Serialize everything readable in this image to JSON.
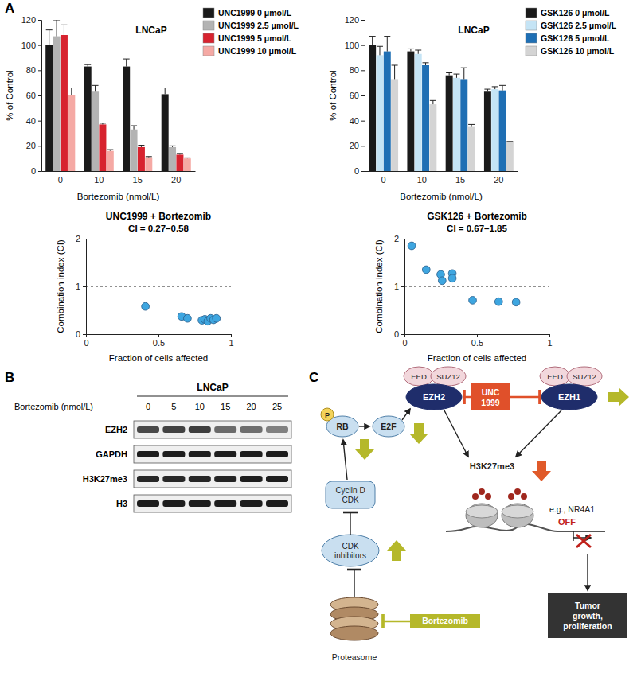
{
  "panel_labels": [
    "A",
    "B",
    "C"
  ],
  "chart_data": [
    {
      "type": "bar",
      "title": "LNCaP",
      "x_label": "Bortezomib (nmol/L)",
      "y_label": "% of Control",
      "categories": [
        "0",
        "10",
        "15",
        "20"
      ],
      "ylim": [
        0,
        120
      ],
      "yticks": [
        0,
        20,
        40,
        60,
        80,
        100,
        120
      ],
      "grid": false,
      "legend": "right",
      "series": [
        {
          "name": "UNC1999 0 μmol/L",
          "color": "#1a1a1a",
          "values": [
            100,
            83,
            83,
            61
          ],
          "errors": [
            12,
            1.5,
            6,
            5
          ]
        },
        {
          "name": "UNC1999 2.5 μmol/L",
          "color": "#b3b3b3",
          "values": [
            107,
            63,
            33,
            19
          ],
          "errors": [
            13,
            5,
            3,
            1
          ]
        },
        {
          "name": "UNC1999 5 μmol/L",
          "color": "#d7232f",
          "values": [
            108,
            37,
            19,
            13
          ],
          "errors": [
            8,
            1,
            1.5,
            1
          ]
        },
        {
          "name": "UNC1999 10 μmol/L",
          "color": "#f5a9a4",
          "values": [
            60,
            16,
            11,
            10
          ],
          "errors": [
            6,
            1,
            0.5,
            0.5
          ]
        }
      ]
    },
    {
      "type": "bar",
      "title": "LNCaP",
      "x_label": "Bortezomib (nmol/L)",
      "y_label": "% of Control",
      "categories": [
        "0",
        "10",
        "15",
        "20"
      ],
      "ylim": [
        0,
        120
      ],
      "yticks": [
        0,
        20,
        40,
        60,
        80,
        100,
        120
      ],
      "grid": false,
      "legend": "right",
      "series": [
        {
          "name": "GSK126 0 μmol/L",
          "color": "#1a1a1a",
          "values": [
            100,
            95,
            76,
            63
          ],
          "errors": [
            7,
            2,
            2,
            2
          ]
        },
        {
          "name": "GSK126 2.5 μmol/L",
          "color": "#c5e4f5",
          "values": [
            92,
            93,
            74,
            65
          ],
          "errors": [
            7,
            3,
            3,
            2
          ]
        },
        {
          "name": "GSK126 5 μmol/L",
          "color": "#1f6fb4",
          "values": [
            95,
            84,
            73,
            64
          ],
          "errors": [
            12,
            2,
            9,
            4
          ]
        },
        {
          "name": "GSK126 10 μmol/L",
          "color": "#d4d4d4",
          "values": [
            73,
            53,
            35,
            23
          ],
          "errors": [
            11,
            3,
            2,
            0.5
          ]
        }
      ]
    },
    {
      "type": "scatter",
      "title": "UNC1999 + Bortezomib",
      "subtitle": "CI = 0.27–0.58",
      "x_label": "Fraction of cells affected",
      "y_label": "Combination index (CI)",
      "x": [
        0.41,
        0.66,
        0.7,
        0.8,
        0.82,
        0.84,
        0.86,
        0.88,
        0.9
      ],
      "values": [
        0.58,
        0.37,
        0.33,
        0.29,
        0.31,
        0.27,
        0.33,
        0.3,
        0.33
      ],
      "color": "#3ea6e0",
      "marker": "circle",
      "grid": false,
      "xlim": [
        0,
        1
      ],
      "xticks": [
        0,
        0.5,
        1
      ],
      "ylim": [
        0,
        2
      ],
      "yticks": [
        0,
        1,
        2
      ],
      "reference_line": 1
    },
    {
      "type": "scatter",
      "title": "GSK126 + Bortezomib",
      "subtitle": "CI = 0.67–1.85",
      "x_label": "Fraction of cells affected",
      "y_label": "Combination index (CI)",
      "x": [
        0.05,
        0.15,
        0.25,
        0.26,
        0.33,
        0.33,
        0.47,
        0.65,
        0.77
      ],
      "values": [
        1.85,
        1.35,
        1.25,
        1.12,
        1.27,
        1.17,
        0.71,
        0.68,
        0.67
      ],
      "color": "#3ea6e0",
      "marker": "circle",
      "grid": false,
      "xlim": [
        0,
        1
      ],
      "xticks": [
        0,
        0.5,
        1
      ],
      "ylim": [
        0,
        2
      ],
      "yticks": [
        0,
        1,
        2
      ],
      "reference_line": 1
    }
  ],
  "blot": {
    "title": "LNCaP",
    "treatment": "Bortezomib (nmol/L)",
    "lanes": [
      0,
      5,
      10,
      15,
      20,
      25
    ],
    "rows": [
      {
        "label": "EZH2",
        "intensity": [
          0.75,
          0.78,
          0.8,
          0.6,
          0.58,
          0.5
        ]
      },
      {
        "label": "GAPDH",
        "intensity": [
          0.95,
          0.95,
          0.95,
          0.95,
          0.95,
          0.95
        ]
      },
      {
        "label": "H3K27me3",
        "intensity": [
          0.9,
          0.9,
          0.9,
          0.92,
          0.95,
          0.95
        ]
      },
      {
        "label": "H3",
        "intensity": [
          0.95,
          0.95,
          0.95,
          0.95,
          0.95,
          0.95
        ]
      }
    ]
  },
  "diagram": {
    "labels": [
      "P",
      "RB",
      "E2F",
      "EZH2",
      "EED",
      "SUZ12",
      [
        "UNC",
        "1999"
      ],
      "EZH1",
      "EED",
      "SUZ12",
      "H3K27me3",
      [
        "Cyclin D",
        "CDK"
      ],
      [
        "CDK",
        "inhibitors"
      ],
      "Bortezomib",
      "Proteasome",
      "e.g., NR4A1",
      "OFF",
      [
        "Tumor",
        "growth,",
        "proliferation"
      ]
    ]
  }
}
